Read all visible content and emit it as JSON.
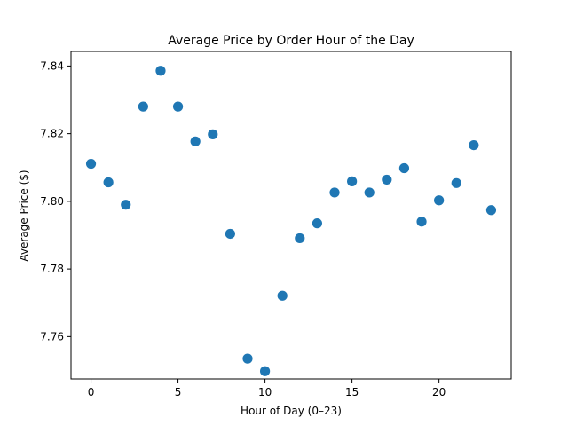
{
  "chart_data": {
    "type": "scatter",
    "title": "Average Price by Order Hour of the Day",
    "xlabel": "Hour of Day (0–23)",
    "ylabel": "Average Price ($)",
    "xlim": [
      -1.15,
      24.15
    ],
    "ylim": [
      7.7475,
      7.8443
    ],
    "xticks": [
      0,
      5,
      10,
      15,
      20
    ],
    "yticks": [
      7.76,
      7.78,
      7.8,
      7.82,
      7.84
    ],
    "ytick_labels": [
      "7.76",
      "7.78",
      "7.80",
      "7.82",
      "7.84"
    ],
    "grid": false,
    "legend": "none",
    "color": "#1f77b4",
    "points": [
      {
        "x": 0,
        "y": 7.8111
      },
      {
        "x": 1,
        "y": 7.8056
      },
      {
        "x": 2,
        "y": 7.799
      },
      {
        "x": 3,
        "y": 7.828
      },
      {
        "x": 4,
        "y": 7.8386
      },
      {
        "x": 5,
        "y": 7.828
      },
      {
        "x": 6,
        "y": 7.8177
      },
      {
        "x": 7,
        "y": 7.8198
      },
      {
        "x": 8,
        "y": 7.7904
      },
      {
        "x": 9,
        "y": 7.7535
      },
      {
        "x": 10,
        "y": 7.7498
      },
      {
        "x": 11,
        "y": 7.7721
      },
      {
        "x": 12,
        "y": 7.7891
      },
      {
        "x": 13,
        "y": 7.7935
      },
      {
        "x": 14,
        "y": 7.8026
      },
      {
        "x": 15,
        "y": 7.8059
      },
      {
        "x": 16,
        "y": 7.8026
      },
      {
        "x": 17,
        "y": 7.8064
      },
      {
        "x": 18,
        "y": 7.8098
      },
      {
        "x": 19,
        "y": 7.794
      },
      {
        "x": 20,
        "y": 7.8003
      },
      {
        "x": 21,
        "y": 7.8054
      },
      {
        "x": 22,
        "y": 7.8166
      },
      {
        "x": 23,
        "y": 7.7974
      }
    ]
  }
}
